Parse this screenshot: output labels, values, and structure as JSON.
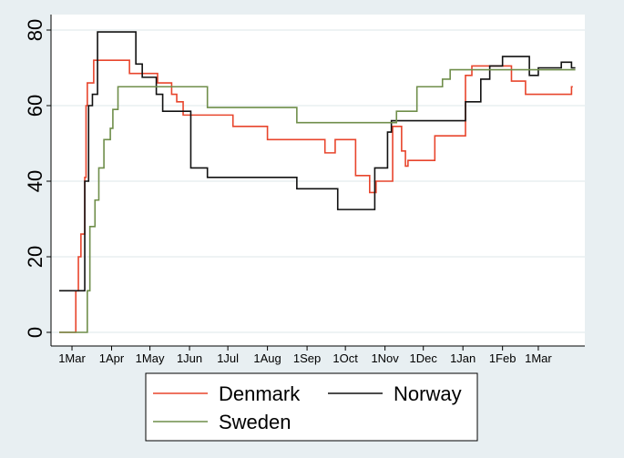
{
  "chart_data": {
    "type": "line",
    "title": "",
    "xlabel": "",
    "ylabel": "",
    "ylim": [
      0,
      80
    ],
    "xlim": [
      "2020-02-20",
      "2021-03-31"
    ],
    "grid": "horizontal",
    "legend_position": "bottom",
    "y_ticks": [
      0,
      20,
      40,
      60,
      80
    ],
    "x_ticks": [
      {
        "date": "2020-03-01",
        "label": "1Mar"
      },
      {
        "date": "2020-04-01",
        "label": "1Apr"
      },
      {
        "date": "2020-05-01",
        "label": "1May"
      },
      {
        "date": "2020-06-01",
        "label": "1Jun"
      },
      {
        "date": "2020-07-01",
        "label": "1Jul"
      },
      {
        "date": "2020-08-01",
        "label": "1Aug"
      },
      {
        "date": "2020-09-01",
        "label": "1Sep"
      },
      {
        "date": "2020-10-01",
        "label": "1Oct"
      },
      {
        "date": "2020-11-01",
        "label": "1Nov"
      },
      {
        "date": "2020-12-01",
        "label": "1Dec"
      },
      {
        "date": "2021-01-01",
        "label": "1Jan"
      },
      {
        "date": "2021-02-01",
        "label": "1Feb"
      },
      {
        "date": "2021-03-01",
        "label": "1Mar"
      }
    ],
    "series": [
      {
        "name": "Denmark",
        "color": "#e8452c",
        "step": true,
        "points": [
          [
            "2020-02-20",
            0
          ],
          [
            "2020-03-03",
            0
          ],
          [
            "2020-03-04",
            11
          ],
          [
            "2020-03-06",
            20
          ],
          [
            "2020-03-08",
            26
          ],
          [
            "2020-03-11",
            41
          ],
          [
            "2020-03-12",
            60
          ],
          [
            "2020-03-13",
            66
          ],
          [
            "2020-03-18",
            72
          ],
          [
            "2020-04-15",
            68.5
          ],
          [
            "2020-05-07",
            66
          ],
          [
            "2020-05-18",
            63
          ],
          [
            "2020-05-22",
            61
          ],
          [
            "2020-05-27",
            57.5
          ],
          [
            "2020-07-05",
            54.5
          ],
          [
            "2020-08-01",
            51
          ],
          [
            "2020-09-15",
            47.5
          ],
          [
            "2020-09-23",
            51
          ],
          [
            "2020-10-09",
            41.5
          ],
          [
            "2020-10-20",
            37
          ],
          [
            "2020-10-25",
            40
          ],
          [
            "2020-11-07",
            54.5
          ],
          [
            "2020-11-14",
            48
          ],
          [
            "2020-11-17",
            44
          ],
          [
            "2020-11-19",
            45.5
          ],
          [
            "2020-12-10",
            52
          ],
          [
            "2021-01-03",
            68
          ],
          [
            "2021-01-08",
            70.5
          ],
          [
            "2021-02-08",
            66.5
          ],
          [
            "2021-02-19",
            63
          ],
          [
            "2021-03-27",
            65
          ],
          [
            "2021-03-28",
            65
          ]
        ]
      },
      {
        "name": "Norway",
        "color": "#111111",
        "step": true,
        "points": [
          [
            "2020-02-20",
            11
          ],
          [
            "2020-03-10",
            11
          ],
          [
            "2020-03-11",
            40
          ],
          [
            "2020-03-14",
            60
          ],
          [
            "2020-03-17",
            63
          ],
          [
            "2020-03-21",
            79.5
          ],
          [
            "2020-04-20",
            71
          ],
          [
            "2020-04-25",
            67.5
          ],
          [
            "2020-05-06",
            63
          ],
          [
            "2020-05-11",
            58.5
          ],
          [
            "2020-06-02",
            43.5
          ],
          [
            "2020-06-15",
            41
          ],
          [
            "2020-08-24",
            38
          ],
          [
            "2020-09-25",
            32.5
          ],
          [
            "2020-10-24",
            43.5
          ],
          [
            "2020-11-03",
            53
          ],
          [
            "2020-11-06",
            56
          ],
          [
            "2021-01-03",
            61
          ],
          [
            "2021-01-15",
            67
          ],
          [
            "2021-01-22",
            70.5
          ],
          [
            "2021-02-01",
            73
          ],
          [
            "2021-02-22",
            68
          ],
          [
            "2021-03-01",
            70
          ],
          [
            "2021-03-19",
            71.5
          ],
          [
            "2021-03-27",
            70
          ],
          [
            "2021-03-30",
            70
          ]
        ]
      },
      {
        "name": "Sweden",
        "color": "#6f8e4a",
        "step": true,
        "points": [
          [
            "2020-02-20",
            0
          ],
          [
            "2020-03-12",
            0
          ],
          [
            "2020-03-13",
            11
          ],
          [
            "2020-03-15",
            28
          ],
          [
            "2020-03-19",
            35
          ],
          [
            "2020-03-22",
            43.5
          ],
          [
            "2020-03-26",
            51
          ],
          [
            "2020-03-31",
            54
          ],
          [
            "2020-04-02",
            59
          ],
          [
            "2020-04-06",
            65
          ],
          [
            "2020-06-15",
            59.5
          ],
          [
            "2020-08-24",
            55.5
          ],
          [
            "2020-11-10",
            58.5
          ],
          [
            "2020-11-26",
            65
          ],
          [
            "2020-12-16",
            67
          ],
          [
            "2020-12-22",
            69.5
          ],
          [
            "2021-03-30",
            69.5
          ]
        ]
      }
    ]
  }
}
